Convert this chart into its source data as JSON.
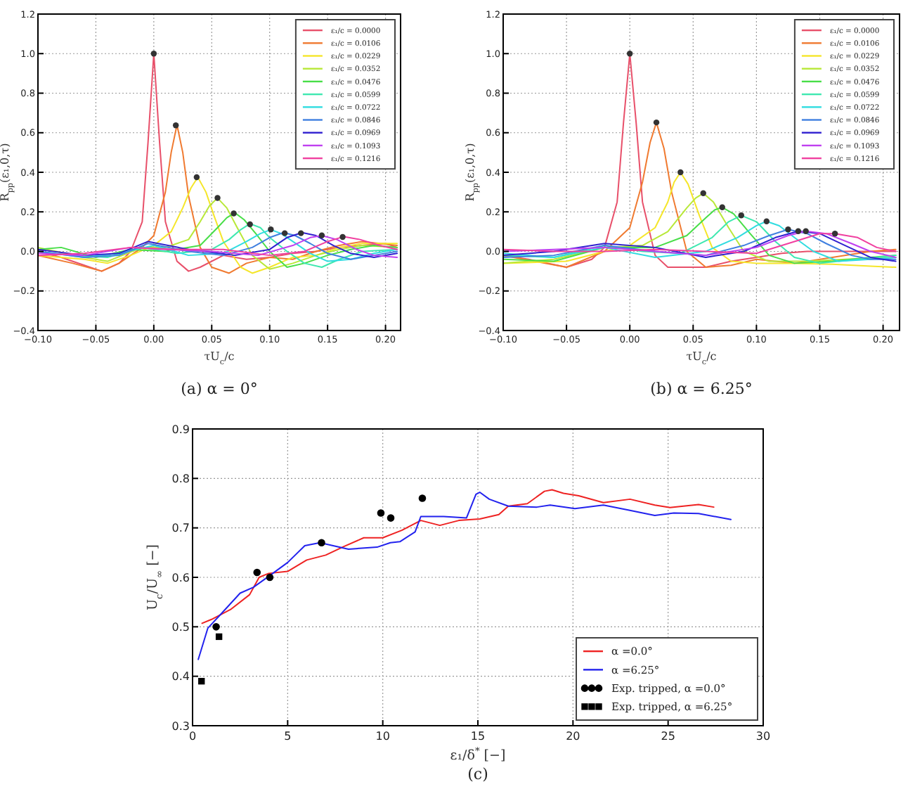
{
  "chart_data": [
    {
      "type": "line",
      "title": "(a) α = 0°",
      "xlabel": "τU$_{c}$/c",
      "ylabel": "R$_{pp}$(ε₁,0,τ)",
      "xlim": [
        -0.1,
        0.213
      ],
      "ylim": [
        -0.4,
        1.2
      ],
      "xticks": [
        {
          "value": -0.1,
          "label": "−0.10"
        },
        {
          "value": -0.05,
          "label": "−0.05"
        },
        {
          "value": 0,
          "label": "0.00"
        },
        {
          "value": 0.05,
          "label": "0.05"
        },
        {
          "value": 0.1,
          "label": "0.10"
        },
        {
          "value": 0.15,
          "label": "0.15"
        },
        {
          "value": 0.2,
          "label": "0.20"
        }
      ],
      "yticks": [
        {
          "value": -0.4,
          "label": "−0.4"
        },
        {
          "value": -0.2,
          "label": "−0.2"
        },
        {
          "value": 0,
          "label": "0.0"
        },
        0.2,
        0.4,
        0.6,
        0.8,
        {
          "value": 1,
          "label": "1.0"
        },
        {
          "value": 1.2,
          "label": "1.2"
        }
      ],
      "grid": true,
      "legend": "top right",
      "series": [
        {
          "name": "ε₁/c = 0.0000",
          "color": "#e8506a",
          "x": [
            -0.1,
            -0.08,
            -0.06,
            -0.045,
            -0.03,
            -0.02,
            -0.01,
            -0.005,
            0,
            0.005,
            0.01,
            0.02,
            0.03,
            0.04,
            0.06,
            0.08,
            0.1,
            0.12,
            0.14,
            0.16,
            0.18,
            0.2,
            0.21
          ],
          "values": [
            0,
            -0.03,
            -0.07,
            -0.1,
            -0.06,
            0,
            0.15,
            0.55,
            1,
            0.55,
            0.15,
            -0.05,
            -0.1,
            -0.08,
            -0.02,
            -0.04,
            -0.03,
            -0.01,
            0,
            0.02,
            0.03,
            0.04,
            0.02
          ]
        },
        {
          "name": "ε₁/c = 0.0106",
          "color": "#f07a30",
          "x": [
            -0.1,
            -0.07,
            -0.045,
            -0.03,
            -0.01,
            0,
            0.01,
            0.015,
            0.02,
            0.025,
            0.03,
            0.04,
            0.05,
            0.065,
            0.08,
            0.1,
            0.12,
            0.14,
            0.16,
            0.18,
            0.21
          ],
          "values": [
            -0.02,
            -0.06,
            -0.1,
            -0.06,
            0.02,
            0.08,
            0.3,
            0.5,
            0.64,
            0.5,
            0.28,
            0.02,
            -0.08,
            -0.11,
            -0.06,
            -0.03,
            -0.04,
            0,
            0.03,
            0.05,
            0.03
          ]
        },
        {
          "name": "ε₁/c = 0.0229",
          "color": "#f5e62a",
          "x": [
            -0.1,
            -0.06,
            -0.04,
            -0.02,
            0,
            0.015,
            0.025,
            0.032,
            0.038,
            0.045,
            0.052,
            0.06,
            0.075,
            0.085,
            0.1,
            0.12,
            0.14,
            0.16,
            0.18,
            0.21
          ],
          "values": [
            -0.02,
            -0.04,
            -0.06,
            -0.02,
            0.03,
            0.1,
            0.22,
            0.32,
            0.375,
            0.3,
            0.18,
            0.05,
            -0.08,
            -0.11,
            -0.08,
            -0.03,
            -0.02,
            0.02,
            0.04,
            0.04
          ]
        },
        {
          "name": "ε₁/c = 0.0352",
          "color": "#b8e838",
          "x": [
            -0.1,
            -0.06,
            -0.04,
            -0.01,
            0.01,
            0.03,
            0.04,
            0.048,
            0.055,
            0.063,
            0.072,
            0.085,
            0.1,
            0.12,
            0.14,
            0.16,
            0.18,
            0.21
          ],
          "values": [
            0.02,
            -0.03,
            -0.05,
            0.02,
            0.02,
            0.06,
            0.15,
            0.23,
            0.27,
            0.22,
            0.12,
            -0.02,
            -0.09,
            -0.06,
            -0.02,
            0.01,
            0.03,
            0.02
          ]
        },
        {
          "name": "ε₁/c = 0.0476",
          "color": "#48de48",
          "x": [
            -0.1,
            -0.08,
            -0.05,
            -0.02,
            0.01,
            0.04,
            0.055,
            0.063,
            0.07,
            0.078,
            0.088,
            0.1,
            0.115,
            0.13,
            0.15,
            0.17,
            0.19,
            0.21
          ],
          "values": [
            0.01,
            0.02,
            -0.03,
            0.01,
            0,
            0.03,
            0.12,
            0.17,
            0.195,
            0.16,
            0.09,
            0,
            -0.08,
            -0.06,
            -0.02,
            0.01,
            0.03,
            0.02
          ]
        },
        {
          "name": "ε₁/c = 0.0599",
          "color": "#3ee8b0",
          "x": [
            -0.1,
            -0.07,
            -0.04,
            -0.01,
            0.02,
            0.05,
            0.065,
            0.075,
            0.083,
            0.092,
            0.1,
            0.115,
            0.13,
            0.145,
            0.16,
            0.18,
            0.21
          ],
          "values": [
            0,
            -0.02,
            -0.03,
            0.02,
            -0.01,
            0.01,
            0.06,
            0.11,
            0.14,
            0.12,
            0.07,
            0,
            -0.06,
            -0.08,
            -0.04,
            0,
            0.01
          ]
        },
        {
          "name": "ε₁/c = 0.0722",
          "color": "#30dce0",
          "x": [
            -0.1,
            -0.06,
            -0.03,
            0,
            0.03,
            0.06,
            0.08,
            0.092,
            0.101,
            0.11,
            0.12,
            0.135,
            0.15,
            0.17,
            0.19,
            0.21
          ],
          "values": [
            0,
            -0.03,
            -0.01,
            0.03,
            -0.02,
            -0.01,
            0.05,
            0.09,
            0.11,
            0.09,
            0.05,
            -0.01,
            -0.05,
            -0.04,
            -0.01,
            0.01
          ]
        },
        {
          "name": "ε₁/c = 0.0846",
          "color": "#4080e0",
          "x": [
            -0.1,
            -0.06,
            -0.03,
            -0.005,
            0.03,
            0.06,
            0.085,
            0.1,
            0.112,
            0.122,
            0.135,
            0.15,
            0.17,
            0.19,
            0.21
          ],
          "values": [
            0,
            -0.03,
            -0.02,
            0.04,
            0,
            -0.02,
            0.02,
            0.07,
            0.095,
            0.08,
            0.04,
            -0.01,
            -0.04,
            -0.02,
            0
          ]
        },
        {
          "name": "ε₁/c = 0.0969",
          "color": "#3020d0",
          "x": [
            -0.1,
            -0.06,
            -0.03,
            -0.005,
            0.03,
            0.07,
            0.1,
            0.115,
            0.128,
            0.14,
            0.155,
            0.17,
            0.19,
            0.21
          ],
          "values": [
            0.01,
            -0.02,
            -0.01,
            0.05,
            0.01,
            -0.02,
            0.01,
            0.07,
            0.095,
            0.08,
            0.03,
            -0.01,
            -0.03,
            -0.01
          ]
        },
        {
          "name": "ε₁/c = 0.1093",
          "color": "#c040f0",
          "x": [
            -0.1,
            -0.06,
            -0.02,
            0.01,
            0.05,
            0.09,
            0.12,
            0.135,
            0.145,
            0.158,
            0.175,
            0.19,
            0.21
          ],
          "values": [
            -0.01,
            -0.02,
            0.02,
            0.01,
            0,
            -0.02,
            0.03,
            0.07,
            0.08,
            0.06,
            0.01,
            -0.02,
            -0.03
          ]
        },
        {
          "name": "ε₁/c = 0.1216",
          "color": "#f040a0",
          "x": [
            -0.1,
            -0.06,
            -0.02,
            0.02,
            0.06,
            0.1,
            0.13,
            0.15,
            0.164,
            0.178,
            0.195,
            0.21
          ],
          "values": [
            -0.02,
            -0.01,
            0.02,
            0.01,
            0.01,
            -0.02,
            0,
            0.05,
            0.075,
            0.06,
            0.03,
            0.01
          ]
        },
        {
          "type": "scatter",
          "marker": "circle",
          "color": "#333333",
          "x": [
            0,
            0.019,
            0.037,
            0.055,
            0.069,
            0.083,
            0.101,
            0.113,
            0.127,
            0.145,
            0.163
          ],
          "values": [
            1,
            0.637,
            0.375,
            0.27,
            0.192,
            0.137,
            0.111,
            0.092,
            0.092,
            0.081,
            0.073
          ]
        }
      ]
    },
    {
      "type": "line",
      "title": "(b) α = 6.25°",
      "xlabel": "τU$_{c}$/c",
      "ylabel": "R$_{pp}$(ε₁,0,τ)",
      "xlim": [
        -0.1,
        0.213
      ],
      "ylim": [
        -0.4,
        1.2
      ],
      "xticks": [
        {
          "value": -0.1,
          "label": "−0.10"
        },
        {
          "value": -0.05,
          "label": "−0.05"
        },
        {
          "value": 0,
          "label": "0.00"
        },
        {
          "value": 0.05,
          "label": "0.05"
        },
        {
          "value": 0.1,
          "label": "0.10"
        },
        {
          "value": 0.15,
          "label": "0.15"
        },
        {
          "value": 0.2,
          "label": "0.20"
        }
      ],
      "yticks": [
        {
          "value": -0.4,
          "label": "−0.4"
        },
        {
          "value": -0.2,
          "label": "−0.2"
        },
        {
          "value": 0,
          "label": "0.0"
        },
        0.2,
        0.4,
        0.6,
        0.8,
        {
          "value": 1,
          "label": "1.0"
        },
        {
          "value": 1.2,
          "label": "1.2"
        }
      ],
      "grid": true,
      "legend": "top right",
      "series": [
        {
          "name": "ε₁/c = 0.0000",
          "color": "#e8506a",
          "x": [
            -0.1,
            -0.08,
            -0.05,
            -0.03,
            -0.02,
            -0.01,
            -0.005,
            0,
            0.005,
            0.01,
            0.02,
            0.03,
            0.04,
            0.06,
            0.08,
            0.1,
            0.12,
            0.14,
            0.16,
            0.18,
            0.21
          ],
          "values": [
            -0.02,
            -0.04,
            -0.08,
            -0.04,
            0.02,
            0.25,
            0.65,
            1,
            0.65,
            0.25,
            -0.02,
            -0.08,
            -0.08,
            -0.08,
            -0.05,
            -0.03,
            -0.01,
            0,
            0,
            0,
            0
          ]
        },
        {
          "name": "ε₁/c = 0.0106",
          "color": "#f07a30",
          "x": [
            -0.1,
            -0.05,
            -0.02,
            0,
            0.01,
            0.016,
            0.021,
            0.027,
            0.033,
            0.045,
            0.06,
            0.08,
            0.1,
            0.13,
            0.16,
            0.19,
            0.21
          ],
          "values": [
            -0.02,
            -0.08,
            0,
            0.12,
            0.35,
            0.55,
            0.652,
            0.52,
            0.3,
            0,
            -0.08,
            -0.07,
            -0.04,
            -0.06,
            -0.03,
            0,
            0.01
          ]
        },
        {
          "name": "ε₁/c = 0.0229",
          "color": "#f5e62a",
          "x": [
            -0.1,
            -0.05,
            -0.02,
            0,
            0.02,
            0.03,
            0.035,
            0.04,
            0.046,
            0.055,
            0.065,
            0.08,
            0.1,
            0.13,
            0.16,
            0.19,
            0.21
          ],
          "values": [
            -0.06,
            -0.05,
            0,
            0.03,
            0.12,
            0.25,
            0.35,
            0.4,
            0.34,
            0.18,
            0.02,
            -0.05,
            -0.06,
            -0.06,
            -0.065,
            -0.075,
            -0.08
          ]
        },
        {
          "name": "ε₁/c = 0.0352",
          "color": "#b8e838",
          "x": [
            -0.1,
            -0.06,
            -0.02,
            0.01,
            0.03,
            0.045,
            0.052,
            0.058,
            0.066,
            0.078,
            0.09,
            0.11,
            0.14,
            0.17,
            0.21
          ],
          "values": [
            -0.06,
            -0.04,
            0.02,
            0.03,
            0.1,
            0.22,
            0.27,
            0.294,
            0.25,
            0.12,
            0,
            -0.05,
            -0.05,
            -0.04,
            -0.03
          ]
        },
        {
          "name": "ε₁/c = 0.0476",
          "color": "#48de48",
          "x": [
            -0.1,
            -0.06,
            -0.02,
            0.02,
            0.045,
            0.06,
            0.067,
            0.073,
            0.082,
            0.095,
            0.11,
            0.13,
            0.16,
            0.19,
            0.21
          ],
          "values": [
            -0.04,
            -0.05,
            0.02,
            0.02,
            0.08,
            0.17,
            0.21,
            0.223,
            0.19,
            0.09,
            -0.02,
            -0.06,
            -0.05,
            -0.03,
            -0.02
          ]
        },
        {
          "name": "ε₁/c = 0.0599",
          "color": "#3ee8b0",
          "x": [
            -0.1,
            -0.06,
            -0.02,
            0.01,
            0.04,
            0.065,
            0.078,
            0.088,
            0.1,
            0.115,
            0.13,
            0.15,
            0.18,
            0.21
          ],
          "values": [
            -0.02,
            -0.03,
            0.03,
            0,
            -0.01,
            0.07,
            0.15,
            0.182,
            0.15,
            0.05,
            -0.03,
            -0.06,
            -0.04,
            -0.02
          ]
        },
        {
          "name": "ε₁/c = 0.0722",
          "color": "#30dce0",
          "x": [
            -0.1,
            -0.06,
            -0.02,
            0.02,
            0.06,
            0.085,
            0.1,
            0.108,
            0.118,
            0.13,
            0.145,
            0.165,
            0.19,
            0.21
          ],
          "values": [
            -0.01,
            -0.03,
            0.02,
            -0.03,
            0,
            0.07,
            0.13,
            0.152,
            0.13,
            0.07,
            0,
            -0.05,
            -0.04,
            -0.03
          ]
        },
        {
          "name": "ε₁/c = 0.0846",
          "color": "#4080e0",
          "x": [
            -0.1,
            -0.06,
            -0.02,
            0.02,
            0.06,
            0.09,
            0.11,
            0.125,
            0.14,
            0.155,
            0.175,
            0.19,
            0.21
          ],
          "values": [
            -0.03,
            -0.02,
            0.03,
            0,
            -0.02,
            0.03,
            0.08,
            0.111,
            0.09,
            0.04,
            -0.02,
            -0.04,
            -0.04
          ]
        },
        {
          "name": "ε₁/c = 0.0969",
          "color": "#3020d0",
          "x": [
            -0.1,
            -0.06,
            -0.02,
            0.02,
            0.06,
            0.09,
            0.115,
            0.133,
            0.15,
            0.17,
            0.19,
            0.21
          ],
          "values": [
            -0.02,
            0,
            0.04,
            0.02,
            -0.03,
            0,
            0.07,
            0.102,
            0.09,
            0.03,
            -0.03,
            -0.05
          ]
        },
        {
          "name": "ε₁/c = 0.1093",
          "color": "#c040f0",
          "x": [
            -0.1,
            -0.06,
            -0.02,
            0.02,
            0.06,
            0.1,
            0.125,
            0.139,
            0.155,
            0.175,
            0.19,
            0.21
          ],
          "values": [
            0,
            0.01,
            0.02,
            0,
            -0.02,
            0.02,
            0.08,
            0.102,
            0.09,
            0.04,
            0,
            -0.03
          ]
        },
        {
          "name": "ε₁/c = 0.1216",
          "color": "#f040a0",
          "x": [
            -0.1,
            -0.06,
            -0.02,
            0.02,
            0.06,
            0.1,
            0.13,
            0.15,
            0.162,
            0.18,
            0.195,
            0.21
          ],
          "values": [
            0.01,
            0,
            0,
            0.01,
            0,
            -0.01,
            0.05,
            0.09,
            0.09,
            0.07,
            0.02,
            0
          ]
        },
        {
          "type": "scatter",
          "marker": "circle",
          "color": "#333333",
          "x": [
            0,
            0.021,
            0.04,
            0.058,
            0.073,
            0.088,
            0.108,
            0.125,
            0.133,
            0.139,
            0.162
          ],
          "values": [
            1,
            0.652,
            0.4,
            0.294,
            0.223,
            0.182,
            0.152,
            0.111,
            0.102,
            0.102,
            0.09
          ]
        }
      ]
    },
    {
      "type": "line",
      "title": "(c)",
      "xlabel": "ε₁/δ$^{*}$ [−]",
      "ylabel": "U$_{c}$/U$_{∞}$ [−]",
      "xlim": [
        0,
        30
      ],
      "ylim": [
        0.3,
        0.9
      ],
      "xticks": [
        0,
        5,
        10,
        15,
        20,
        25,
        30
      ],
      "yticks": [
        0.3,
        0.4,
        0.5,
        0.6,
        0.7,
        0.8,
        0.9
      ],
      "grid": true,
      "legend": "bottom right",
      "series": [
        {
          "name": "α =0.0°",
          "color": "#ee2222",
          "x": [
            0.5,
            1,
            2,
            3,
            3.5,
            4,
            5,
            6,
            7,
            8,
            9,
            10,
            11,
            12,
            12.5,
            13,
            14,
            15.1,
            16.1,
            16.6,
            17.6,
            18.5,
            18.9,
            19.5,
            20.3,
            21.6,
            23,
            24.3,
            25.1,
            26.6,
            27.4
          ],
          "values": [
            0.507,
            0.515,
            0.535,
            0.565,
            0.6,
            0.608,
            0.612,
            0.635,
            0.645,
            0.663,
            0.68,
            0.68,
            0.695,
            0.715,
            0.71,
            0.705,
            0.715,
            0.718,
            0.727,
            0.744,
            0.749,
            0.774,
            0.777,
            0.77,
            0.765,
            0.751,
            0.758,
            0.746,
            0.741,
            0.747,
            0.742
          ]
        },
        {
          "name": "α =6.25°",
          "color": "#2222ee",
          "x": [
            0.3,
            0.8,
            1.5,
            2.5,
            3.2,
            4,
            5,
            5.9,
            6.7,
            8.2,
            9.7,
            10.4,
            10.9,
            11.7,
            12,
            13.2,
            14.4,
            14.9,
            15.1,
            15.6,
            16.6,
            18.1,
            18.8,
            20.1,
            21.6,
            22.9,
            24.3,
            25.3,
            26.6,
            28.3
          ],
          "values": [
            0.434,
            0.497,
            0.526,
            0.568,
            0.58,
            0.602,
            0.63,
            0.664,
            0.67,
            0.657,
            0.661,
            0.67,
            0.672,
            0.692,
            0.723,
            0.723,
            0.72,
            0.768,
            0.772,
            0.758,
            0.744,
            0.742,
            0.746,
            0.739,
            0.746,
            0.736,
            0.725,
            0.73,
            0.729,
            0.717
          ]
        },
        {
          "name": "Exp. tripped, α =0.0°",
          "type": "scatter",
          "marker": "circle",
          "color": "#000000",
          "x": [
            1.24,
            3.39,
            4.06,
            6.78,
            9.9,
            10.42,
            12.08
          ],
          "values": [
            0.5,
            0.61,
            0.6,
            0.67,
            0.73,
            0.72,
            0.76
          ]
        },
        {
          "name": "Exp. tripped, α =6.25°",
          "type": "scatter",
          "marker": "square",
          "color": "#000000",
          "x": [
            0.47,
            1.39
          ],
          "values": [
            0.39,
            0.48
          ]
        }
      ]
    }
  ]
}
